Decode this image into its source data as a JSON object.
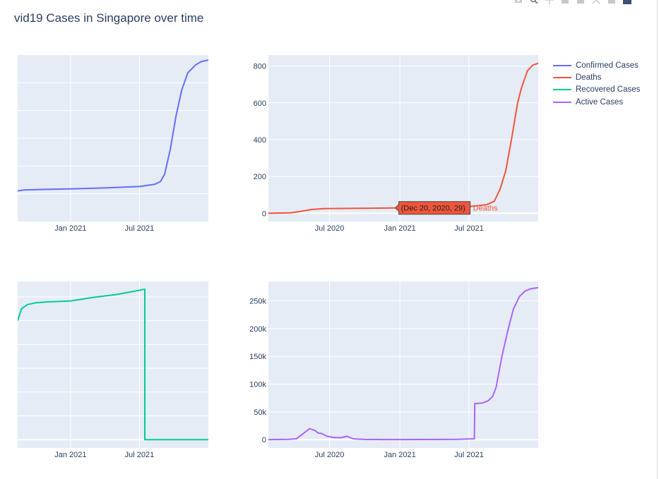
{
  "title": "vid19 Cases in Singapore over time",
  "modebar": {
    "icons": [
      "camera-icon",
      "zoom-icon",
      "pan-icon",
      "zoom-in-icon",
      "zoom-out-icon",
      "autoscale-icon",
      "home-icon",
      "plotly-logo-icon"
    ]
  },
  "colors": {
    "confirmed": "#636efa",
    "deaths": "#ef553b",
    "recovered": "#00cc96",
    "active": "#ab63fa",
    "plot_bg": "#e5ecf6",
    "grid": "#ffffff",
    "text": "#2a3f5f"
  },
  "legend": [
    {
      "label": "Confirmed Cases",
      "color": "#636efa"
    },
    {
      "label": "Deaths",
      "color": "#ef553b"
    },
    {
      "label": "Recovered Cases",
      "color": "#00cc96"
    },
    {
      "label": "Active Cases",
      "color": "#ab63fa"
    }
  ],
  "hover": {
    "text": "(Dec 20, 2020, 29)",
    "series": "Deaths",
    "color": "#ef553b",
    "x": "2020-12-20",
    "y": 29
  },
  "chart_data": [
    {
      "type": "line",
      "series_name": "Confirmed Cases",
      "color": "#636efa",
      "x_ticks": [
        "2021-01-01",
        "2021-07-01"
      ],
      "x_tick_labels": [
        "Jan 2021",
        "Jul 2021"
      ],
      "x_range": [
        "2020-08-15",
        "2021-12-29"
      ],
      "y_range": [
        0,
        300000
      ],
      "y_gridlines": [
        50000,
        100000,
        150000,
        200000,
        250000
      ],
      "y_tick_labels_visible": false,
      "points": [
        [
          "2020-08-15",
          55000
        ],
        [
          "2020-09-01",
          57000
        ],
        [
          "2020-11-01",
          58000
        ],
        [
          "2021-01-01",
          58800
        ],
        [
          "2021-04-01",
          60500
        ],
        [
          "2021-07-01",
          63000
        ],
        [
          "2021-08-10",
          67000
        ],
        [
          "2021-08-25",
          72000
        ],
        [
          "2021-09-05",
          85000
        ],
        [
          "2021-09-20",
          130000
        ],
        [
          "2021-10-05",
          190000
        ],
        [
          "2021-10-20",
          237000
        ],
        [
          "2021-11-05",
          268000
        ],
        [
          "2021-11-25",
          282000
        ],
        [
          "2021-12-10",
          288000
        ],
        [
          "2021-12-29",
          291000
        ]
      ]
    },
    {
      "type": "line",
      "series_name": "Deaths",
      "color": "#ef553b",
      "x_ticks": [
        "2020-07-01",
        "2021-01-01",
        "2021-07-01"
      ],
      "x_tick_labels": [
        "Jul 2020",
        "Jan 2021",
        "Jul 2021"
      ],
      "x_range": [
        "2020-01-23",
        "2021-12-29"
      ],
      "y_range": [
        -45,
        860
      ],
      "y_ticks": [
        0,
        200,
        400,
        600,
        800
      ],
      "y_tick_labels": [
        "0",
        "200",
        "400",
        "600",
        "800"
      ],
      "points": [
        [
          "2020-01-23",
          0
        ],
        [
          "2020-03-20",
          2
        ],
        [
          "2020-04-15",
          10
        ],
        [
          "2020-05-15",
          20
        ],
        [
          "2020-06-15",
          25
        ],
        [
          "2020-08-01",
          26
        ],
        [
          "2020-10-01",
          27
        ],
        [
          "2020-12-20",
          29
        ],
        [
          "2021-02-01",
          29
        ],
        [
          "2021-05-01",
          31
        ],
        [
          "2021-07-01",
          36
        ],
        [
          "2021-08-15",
          46
        ],
        [
          "2021-09-05",
          65
        ],
        [
          "2021-09-20",
          130
        ],
        [
          "2021-10-05",
          230
        ],
        [
          "2021-10-20",
          400
        ],
        [
          "2021-11-05",
          600
        ],
        [
          "2021-11-15",
          680
        ],
        [
          "2021-12-01",
          775
        ],
        [
          "2021-12-15",
          805
        ],
        [
          "2021-12-29",
          815
        ]
      ]
    },
    {
      "type": "line",
      "series_name": "Recovered Cases",
      "color": "#00cc96",
      "x_ticks": [
        "2021-01-01",
        "2021-07-01"
      ],
      "x_tick_labels": [
        "Jan 2021",
        "Jul 2021"
      ],
      "x_range": [
        "2020-08-15",
        "2021-12-29"
      ],
      "y_range": [
        -3500,
        66500
      ],
      "y_gridlines": [
        0,
        10000,
        20000,
        30000,
        40000,
        50000,
        60000
      ],
      "y_tick_labels_visible": false,
      "points": [
        [
          "2020-08-15",
          50000
        ],
        [
          "2020-08-25",
          55000
        ],
        [
          "2020-09-10",
          56800
        ],
        [
          "2020-10-01",
          57500
        ],
        [
          "2020-11-01",
          57900
        ],
        [
          "2021-01-01",
          58300
        ],
        [
          "2021-03-01",
          59800
        ],
        [
          "2021-05-01",
          61000
        ],
        [
          "2021-07-01",
          62800
        ],
        [
          "2021-07-15",
          63300
        ],
        [
          "2021-07-15",
          0
        ],
        [
          "2021-12-29",
          0
        ]
      ]
    },
    {
      "type": "line",
      "series_name": "Active Cases",
      "color": "#ab63fa",
      "x_ticks": [
        "2020-07-01",
        "2021-01-01",
        "2021-07-01"
      ],
      "x_tick_labels": [
        "Jul 2020",
        "Jan 2021",
        "Jul 2021"
      ],
      "x_range": [
        "2020-01-23",
        "2021-12-29"
      ],
      "y_range": [
        -15000,
        285000
      ],
      "y_ticks": [
        0,
        50000,
        100000,
        150000,
        200000,
        250000
      ],
      "y_tick_labels": [
        "0",
        "50k",
        "100k",
        "150k",
        "200k",
        "250k"
      ],
      "points": [
        [
          "2020-01-23",
          0
        ],
        [
          "2020-03-15",
          500
        ],
        [
          "2020-04-05",
          1500
        ],
        [
          "2020-04-25",
          12000
        ],
        [
          "2020-05-10",
          20000
        ],
        [
          "2020-05-25",
          16000
        ],
        [
          "2020-06-01",
          12000
        ],
        [
          "2020-06-10",
          11000
        ],
        [
          "2020-06-25",
          6000
        ],
        [
          "2020-07-15",
          3500
        ],
        [
          "2020-08-01",
          3500
        ],
        [
          "2020-08-15",
          6000
        ],
        [
          "2020-09-01",
          1500
        ],
        [
          "2020-10-01",
          400
        ],
        [
          "2020-12-01",
          100
        ],
        [
          "2021-03-01",
          200
        ],
        [
          "2021-06-01",
          500
        ],
        [
          "2021-07-15",
          1500
        ],
        [
          "2021-07-16",
          65000
        ],
        [
          "2021-08-05",
          66000
        ],
        [
          "2021-08-20",
          70000
        ],
        [
          "2021-09-01",
          78000
        ],
        [
          "2021-09-10",
          95000
        ],
        [
          "2021-09-25",
          150000
        ],
        [
          "2021-10-10",
          195000
        ],
        [
          "2021-10-25",
          235000
        ],
        [
          "2021-11-10",
          258000
        ],
        [
          "2021-11-25",
          268000
        ],
        [
          "2021-12-10",
          272000
        ],
        [
          "2021-12-29",
          274000
        ]
      ]
    }
  ]
}
